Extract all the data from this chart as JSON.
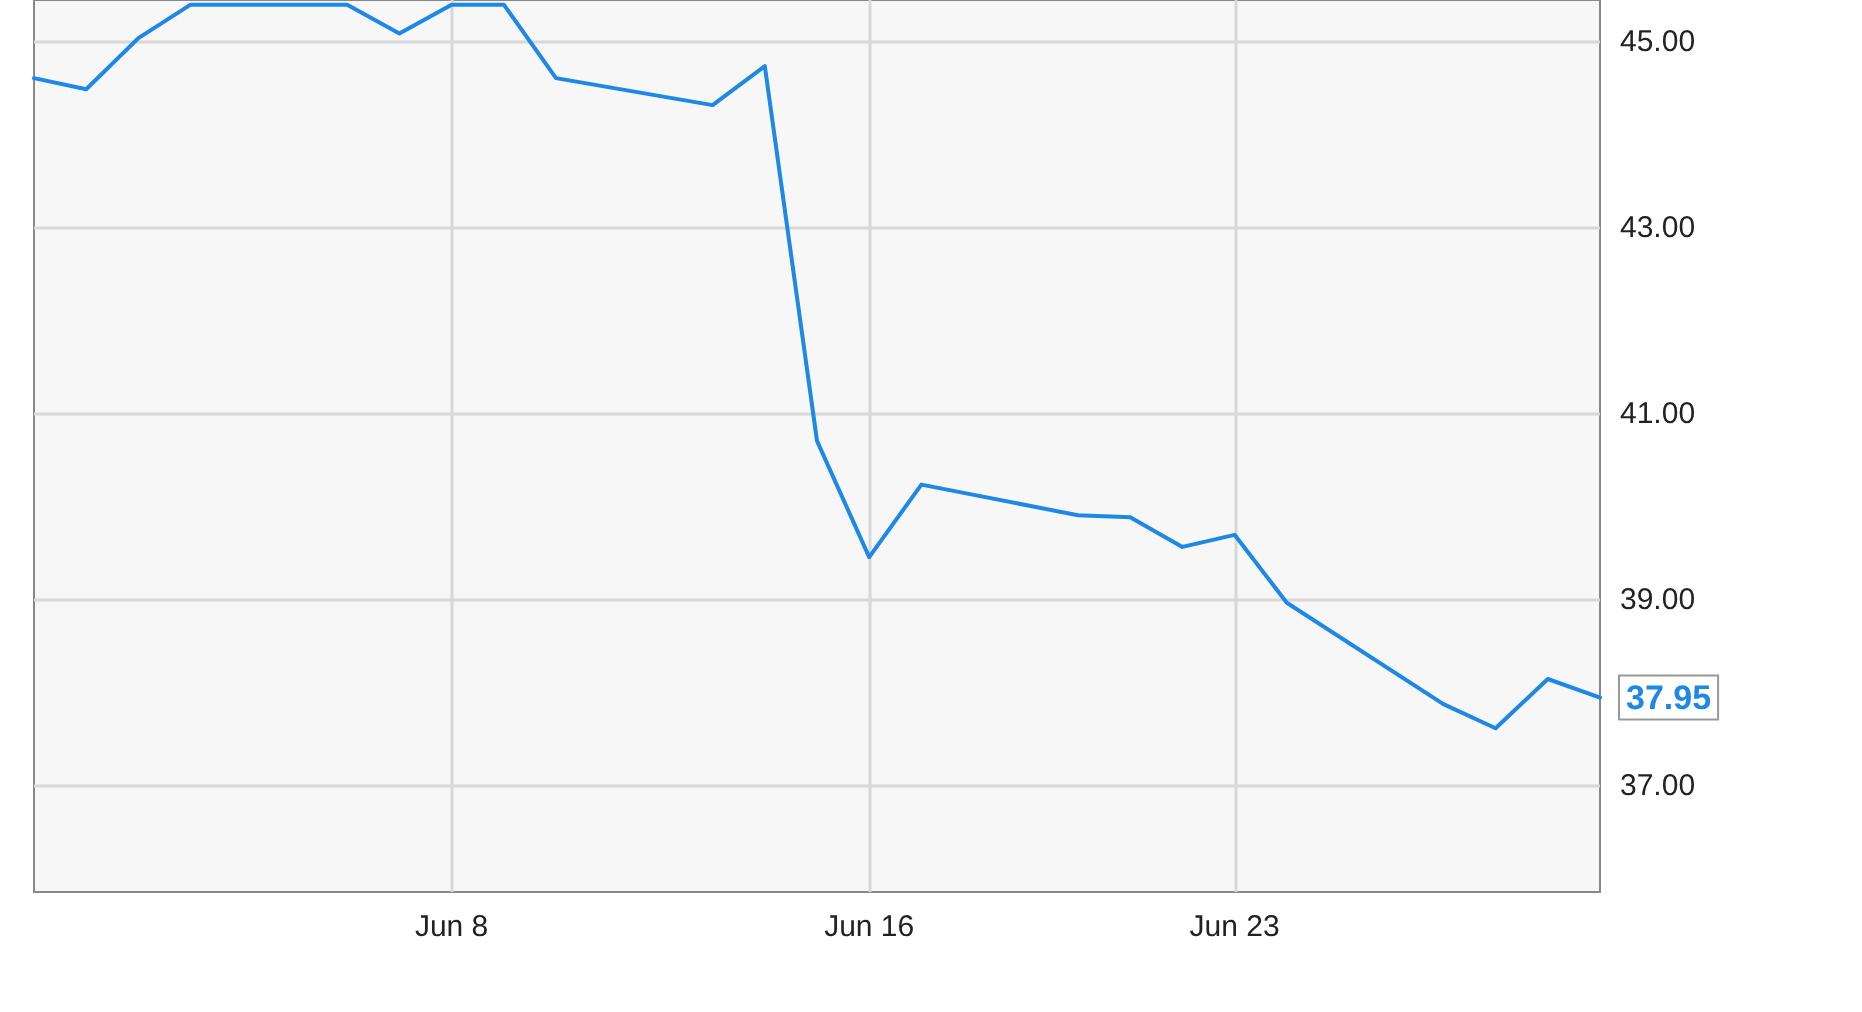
{
  "chart_data": {
    "type": "line",
    "x": [
      "--05-31",
      "--06-01",
      "--06-02",
      "--06-03",
      "--06-06",
      "--06-07",
      "--06-08",
      "--06-09",
      "--06-10",
      "--06-13",
      "--06-14",
      "--06-15",
      "--06-16",
      "--06-17",
      "--06-20",
      "--06-21",
      "--06-22",
      "--06-23",
      "--06-24",
      "--06-27",
      "--06-28",
      "--06-29",
      "--06-30"
    ],
    "series": [
      {
        "color": "#1e88e5",
        "values": [
          44.61,
          44.49,
          45.04,
          45.4,
          45.4,
          45.09,
          45.4,
          45.4,
          44.61,
          44.32,
          44.74,
          40.71,
          39.46,
          40.24,
          39.91,
          39.89,
          39.57,
          39.7,
          38.97,
          37.88,
          37.62,
          38.15,
          37.95
        ],
        "value_labels": [
          null,
          null,
          null,
          null,
          null,
          null,
          null,
          null,
          null,
          null,
          null,
          null,
          null,
          null,
          null,
          null,
          null,
          null,
          null,
          null,
          null,
          null,
          "37.95"
        ]
      }
    ],
    "xlim": [
      "--05-31",
      "--06-30"
    ],
    "xticks": [
      {
        "value": "--06-08",
        "label": "Jun 8"
      },
      {
        "value": "--06-16",
        "label": "Jun 16"
      },
      {
        "value": "--06-23",
        "label": "Jun 23"
      }
    ],
    "ylim": [
      35.86,
      45.45
    ],
    "yticks": [
      {
        "value": 37,
        "label": "37.00"
      },
      {
        "value": 39,
        "label": "39.00"
      },
      {
        "value": 41,
        "label": "41.00"
      },
      {
        "value": 43,
        "label": "43.00"
      },
      {
        "value": 45,
        "label": "45.00"
      }
    ],
    "grid": true,
    "marker": "none",
    "line_style": "solid"
  }
}
